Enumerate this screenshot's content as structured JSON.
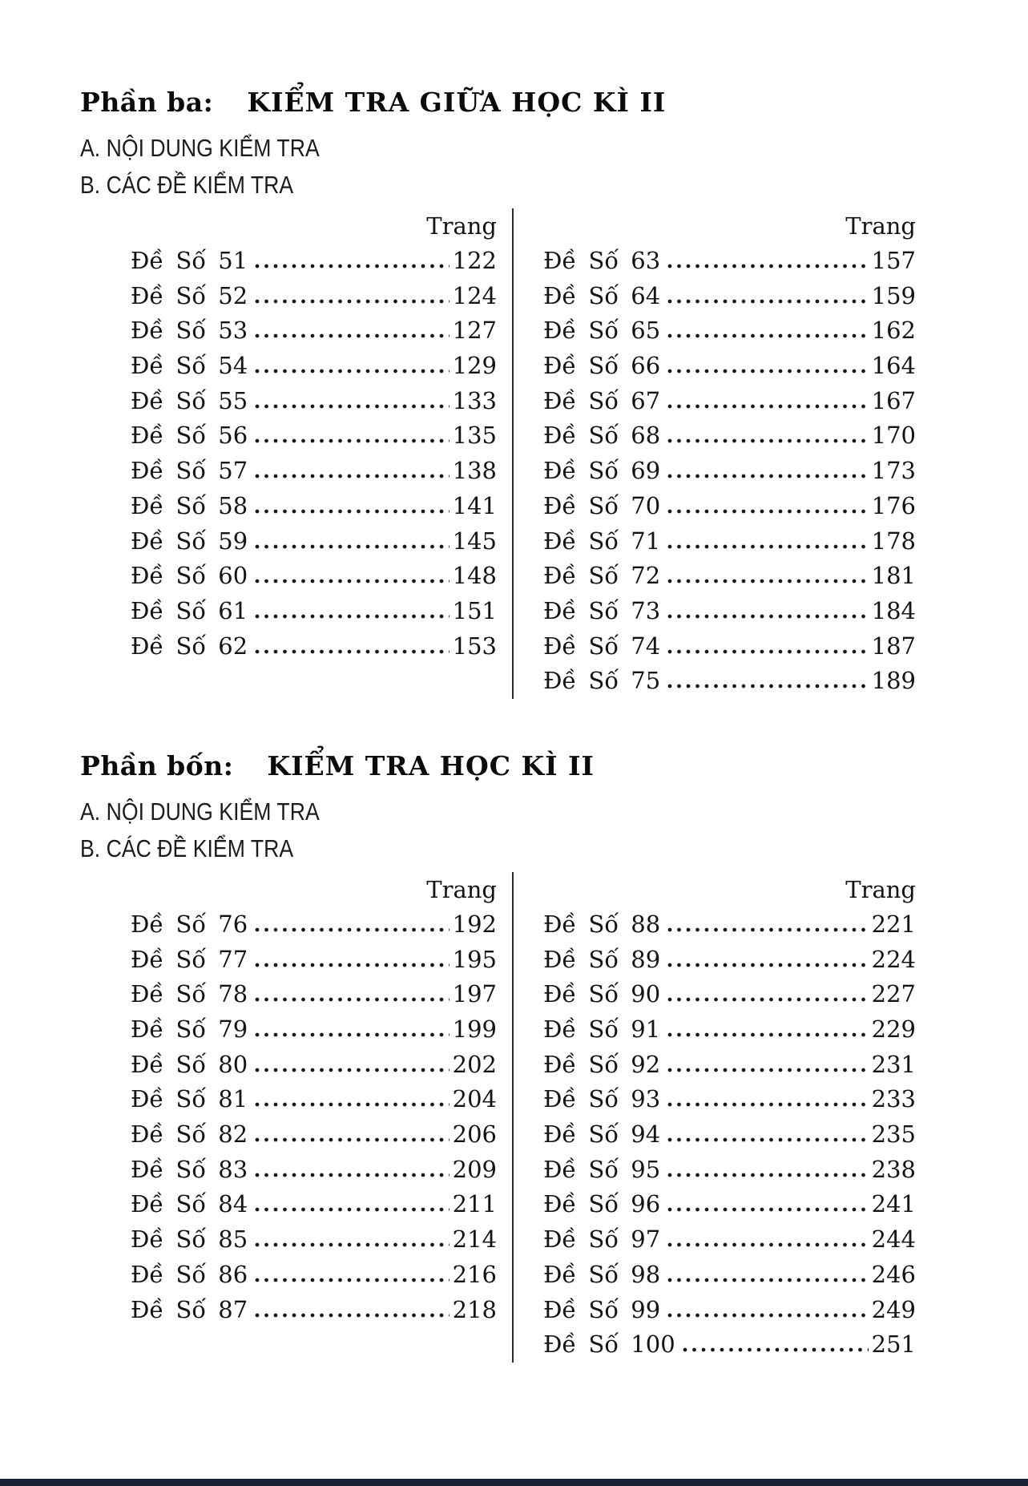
{
  "document": {
    "background_color": "#ffffff",
    "text_color": "#111111",
    "footer_bar_color": "#1b2035"
  },
  "sections": [
    {
      "part_label": "Phần ba:",
      "part_title": "KIỂM TRA GIỮA HỌC KÌ II",
      "subsection_a": "A. NỘI DUNG KIỂM TRA",
      "subsection_b": "B. CÁC ĐỀ KIỂM TRA",
      "page_column_header": "Trang",
      "columns": [
        {
          "entries": [
            {
              "label": "Đề Số 51",
              "page": "122"
            },
            {
              "label": "Đề Số 52",
              "page": "124"
            },
            {
              "label": "Đề Số 53",
              "page": "127"
            },
            {
              "label": "Đề Số 54",
              "page": "129"
            },
            {
              "label": "Đề Số 55",
              "page": "133"
            },
            {
              "label": "Đề Số 56",
              "page": "135"
            },
            {
              "label": "Đề Số 57",
              "page": "138"
            },
            {
              "label": "Đề Số 58",
              "page": "141"
            },
            {
              "label": "Đề Số 59",
              "page": "145"
            },
            {
              "label": "Đề Số 60",
              "page": "148"
            },
            {
              "label": "Đề Số 61",
              "page": "151"
            },
            {
              "label": "Đề Số 62",
              "page": "153"
            }
          ]
        },
        {
          "entries": [
            {
              "label": "Đề Số 63",
              "page": "157"
            },
            {
              "label": "Đề Số 64",
              "page": "159"
            },
            {
              "label": "Đề Số 65",
              "page": "162"
            },
            {
              "label": "Đề Số 66",
              "page": "164"
            },
            {
              "label": "Đề Số 67",
              "page": "167"
            },
            {
              "label": "Đề Số 68",
              "page": "170"
            },
            {
              "label": "Đề Số 69",
              "page": "173"
            },
            {
              "label": "Đề Số 70",
              "page": "176"
            },
            {
              "label": "Đề Số 71",
              "page": "178"
            },
            {
              "label": "Đề Số 72",
              "page": "181"
            },
            {
              "label": "Đề Số 73",
              "page": "184"
            },
            {
              "label": "Đề Số 74",
              "page": "187"
            },
            {
              "label": "Đề Số 75",
              "page": "189"
            }
          ]
        }
      ]
    },
    {
      "part_label": "Phần bốn:",
      "part_title": "KIỂM TRA HỌC KÌ II",
      "subsection_a": "A. NỘI DUNG KIỂM TRA",
      "subsection_b": "B. CÁC ĐỀ KIỂM TRA",
      "page_column_header": "Trang",
      "columns": [
        {
          "entries": [
            {
              "label": "Đề Số 76",
              "page": "192"
            },
            {
              "label": "Đề Số 77",
              "page": "195"
            },
            {
              "label": "Đề Số 78",
              "page": "197"
            },
            {
              "label": "Đề Số 79",
              "page": "199"
            },
            {
              "label": "Đề Số 80",
              "page": "202"
            },
            {
              "label": "Đề Số 81",
              "page": "204"
            },
            {
              "label": "Đề Số 82",
              "page": "206"
            },
            {
              "label": "Đề Số 83",
              "page": "209"
            },
            {
              "label": "Đề Số 84",
              "page": "211"
            },
            {
              "label": "Đề Số 85",
              "page": "214"
            },
            {
              "label": "Đề Số 86",
              "page": "216"
            },
            {
              "label": "Đề Số 87",
              "page": "218"
            }
          ]
        },
        {
          "entries": [
            {
              "label": "Đề Số 88",
              "page": "221"
            },
            {
              "label": "Đề Số 89",
              "page": "224"
            },
            {
              "label": "Đề Số 90",
              "page": "227"
            },
            {
              "label": "Đề Số 91",
              "page": "229"
            },
            {
              "label": "Đề Số 92",
              "page": "231"
            },
            {
              "label": "Đề Số 93",
              "page": "233"
            },
            {
              "label": "Đề Số 94",
              "page": "235"
            },
            {
              "label": "Đề Số 95",
              "page": "238"
            },
            {
              "label": "Đề Số 96",
              "page": "241"
            },
            {
              "label": "Đề Số 97",
              "page": "244"
            },
            {
              "label": "Đề Số 98",
              "page": "246"
            },
            {
              "label": "Đề Số 99",
              "page": "249"
            },
            {
              "label": "Đề Số 100",
              "page": "251"
            }
          ]
        }
      ]
    }
  ]
}
